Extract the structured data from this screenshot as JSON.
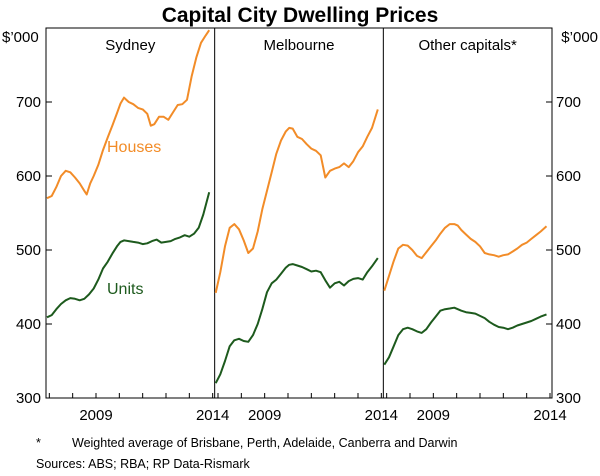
{
  "chart_data": {
    "type": "line",
    "title": "Capital City Dwelling Prices",
    "y_unit_left": "$’000",
    "y_unit_right": "$’000",
    "ylim": [
      300,
      800
    ],
    "yticks": [
      300,
      400,
      500,
      600,
      700
    ],
    "xlim": [
      2006.9,
      2014.0
    ],
    "xticks": [
      2009,
      2014
    ],
    "colors": {
      "houses": "#f28c28",
      "units": "#1d5a1d",
      "frame": "#000000"
    },
    "labels": {
      "houses": "Houses",
      "units": "Units"
    },
    "panels": [
      {
        "name": "Sydney",
        "series": [
          {
            "name": "Houses",
            "x": [
              2006.9,
              2007.1,
              2007.3,
              2007.5,
              2007.7,
              2007.9,
              2008.1,
              2008.3,
              2008.5,
              2008.6,
              2008.75,
              2008.9,
              2009.1,
              2009.3,
              2009.5,
              2009.7,
              2009.9,
              2010.05,
              2010.2,
              2010.4,
              2010.6,
              2010.8,
              2011.0,
              2011.2,
              2011.35,
              2011.5,
              2011.7,
              2011.9,
              2012.1,
              2012.3,
              2012.5,
              2012.7,
              2012.9,
              2013.1,
              2013.3,
              2013.5,
              2013.7,
              2013.85
            ],
            "values": [
              570,
              573,
              585,
              600,
              607,
              605,
              598,
              590,
              580,
              575,
              590,
              600,
              615,
              635,
              652,
              668,
              685,
              698,
              706,
              700,
              697,
              692,
              690,
              684,
              668,
              670,
              680,
              680,
              676,
              686,
              696,
              697,
              703,
              735,
              760,
              780,
              790,
              797
            ]
          },
          {
            "name": "Units",
            "x": [
              2006.9,
              2007.1,
              2007.3,
              2007.5,
              2007.7,
              2007.9,
              2008.1,
              2008.3,
              2008.5,
              2008.7,
              2008.9,
              2009.1,
              2009.3,
              2009.5,
              2009.7,
              2009.9,
              2010.05,
              2010.2,
              2010.4,
              2010.6,
              2010.8,
              2011.0,
              2011.2,
              2011.4,
              2011.6,
              2011.8,
              2012.0,
              2012.2,
              2012.4,
              2012.6,
              2012.8,
              2013.0,
              2013.2,
              2013.4,
              2013.6,
              2013.85
            ],
            "values": [
              409,
              412,
              420,
              427,
              432,
              435,
              434,
              432,
              434,
              440,
              448,
              460,
              475,
              484,
              495,
              505,
              511,
              513,
              512,
              511,
              510,
              508,
              509,
              512,
              514,
              510,
              511,
              512,
              515,
              517,
              520,
              518,
              522,
              530,
              548,
              578
            ]
          }
        ]
      },
      {
        "name": "Melbourne",
        "series": [
          {
            "name": "Houses",
            "x": [
              2006.9,
              2007.1,
              2007.3,
              2007.5,
              2007.7,
              2007.9,
              2008.1,
              2008.3,
              2008.5,
              2008.7,
              2008.9,
              2009.1,
              2009.3,
              2009.5,
              2009.7,
              2009.9,
              2010.05,
              2010.2,
              2010.4,
              2010.6,
              2010.8,
              2011.0,
              2011.2,
              2011.4,
              2011.6,
              2011.8,
              2012.0,
              2012.2,
              2012.4,
              2012.6,
              2012.8,
              2013.0,
              2013.2,
              2013.4,
              2013.6,
              2013.85
            ],
            "values": [
              442,
              470,
              505,
              530,
              535,
              528,
              513,
              496,
              502,
              525,
              555,
              580,
              605,
              630,
              648,
              660,
              665,
              664,
              653,
              650,
              643,
              637,
              634,
              628,
              598,
              607,
              610,
              612,
              617,
              612,
              620,
              632,
              640,
              653,
              665,
              690
            ]
          },
          {
            "name": "Units",
            "x": [
              2006.9,
              2007.1,
              2007.3,
              2007.5,
              2007.7,
              2007.9,
              2008.1,
              2008.3,
              2008.5,
              2008.7,
              2008.9,
              2009.1,
              2009.3,
              2009.5,
              2009.7,
              2009.9,
              2010.05,
              2010.2,
              2010.4,
              2010.6,
              2010.8,
              2011.0,
              2011.2,
              2011.4,
              2011.6,
              2011.8,
              2012.0,
              2012.2,
              2012.4,
              2012.6,
              2012.8,
              2013.0,
              2013.2,
              2013.4,
              2013.6,
              2013.85
            ],
            "values": [
              320,
              332,
              350,
              370,
              378,
              380,
              377,
              376,
              385,
              400,
              420,
              443,
              455,
              460,
              468,
              476,
              480,
              481,
              479,
              477,
              474,
              471,
              472,
              470,
              459,
              449,
              455,
              457,
              452,
              458,
              461,
              462,
              460,
              470,
              478,
              489
            ]
          }
        ]
      },
      {
        "name": "Other capitals*",
        "series": [
          {
            "name": "Houses",
            "x": [
              2006.9,
              2007.1,
              2007.3,
              2007.5,
              2007.7,
              2007.9,
              2008.1,
              2008.3,
              2008.5,
              2008.7,
              2008.9,
              2009.1,
              2009.3,
              2009.5,
              2009.7,
              2009.9,
              2010.05,
              2010.2,
              2010.4,
              2010.6,
              2010.8,
              2011.0,
              2011.2,
              2011.4,
              2011.6,
              2011.8,
              2012.0,
              2012.2,
              2012.4,
              2012.6,
              2012.8,
              2013.0,
              2013.2,
              2013.4,
              2013.6,
              2013.85
            ],
            "values": [
              445,
              465,
              485,
              502,
              507,
              506,
              500,
              492,
              489,
              497,
              505,
              513,
              522,
              530,
              535,
              535,
              533,
              527,
              521,
              515,
              511,
              505,
              496,
              494,
              493,
              491,
              493,
              494,
              498,
              502,
              507,
              510,
              515,
              520,
              525,
              532
            ]
          },
          {
            "name": "Units",
            "x": [
              2006.9,
              2007.1,
              2007.3,
              2007.5,
              2007.7,
              2007.9,
              2008.1,
              2008.3,
              2008.5,
              2008.7,
              2008.9,
              2009.1,
              2009.3,
              2009.5,
              2009.7,
              2009.9,
              2010.05,
              2010.2,
              2010.4,
              2010.6,
              2010.8,
              2011.0,
              2011.2,
              2011.4,
              2011.6,
              2011.8,
              2012.0,
              2012.2,
              2012.4,
              2012.6,
              2012.8,
              2013.0,
              2013.2,
              2013.4,
              2013.6,
              2013.85
            ],
            "values": [
              345,
              355,
              370,
              385,
              393,
              395,
              393,
              390,
              388,
              393,
              402,
              410,
              418,
              420,
              421,
              422,
              420,
              418,
              416,
              415,
              414,
              411,
              408,
              403,
              399,
              396,
              395,
              393,
              395,
              398,
              400,
              402,
              404,
              407,
              410,
              413
            ]
          }
        ]
      }
    ],
    "footnote_mark": "*",
    "footnote": "Weighted average of Brisbane, Perth, Adelaide, Canberra and Darwin",
    "sources": "Sources:  ABS; RBA; RP Data-Rismark"
  }
}
